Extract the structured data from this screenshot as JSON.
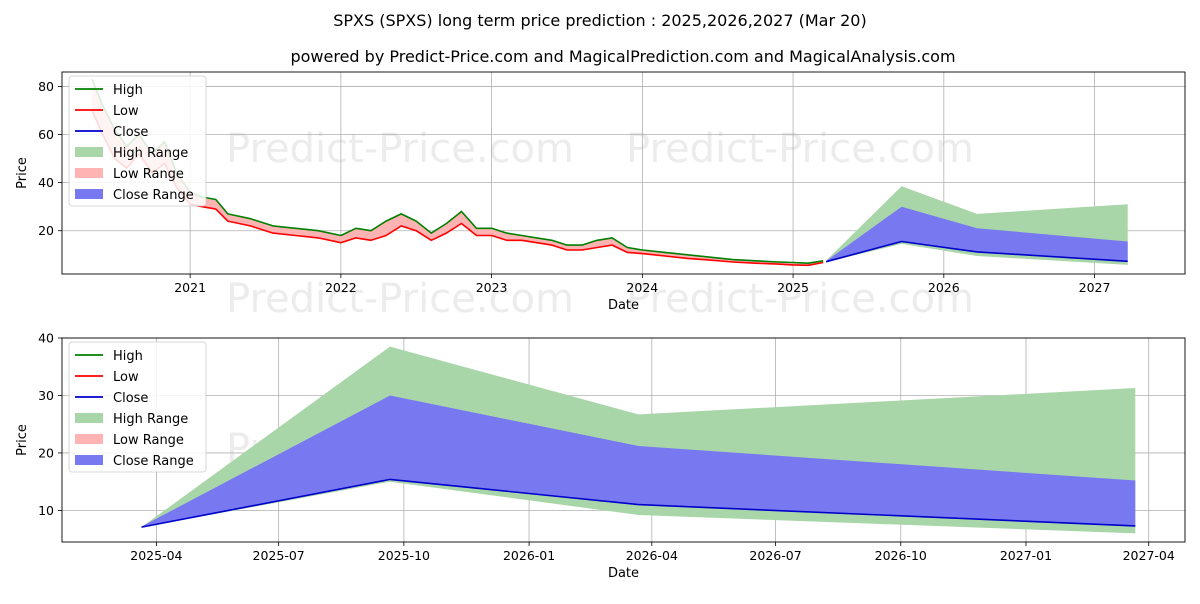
{
  "title": "SPXS (SPXS) long term price prediction : 2025,2026,2027 (Mar 20)",
  "subtitle": "powered by Predict-Price.com and MagicalPrediction.com and MagicalAnalysis.com",
  "watermark": "Predict-Price.com",
  "colors": {
    "high": "#008000",
    "low": "#ff0000",
    "close": "#0000cc",
    "high_range": "#a9d6a9",
    "low_range": "#ffb3b3",
    "close_range": "#7878f0"
  },
  "chart_data": [
    {
      "type": "line",
      "name": "long-term",
      "xlabel": "Date",
      "ylabel": "Price",
      "xlim": [
        2020.15,
        2027.6
      ],
      "ylim": [
        2,
        86
      ],
      "grid": true,
      "legend_position": "upper-left",
      "xticks": [
        {
          "x": 2021.0,
          "label": "2021"
        },
        {
          "x": 2022.0,
          "label": "2022"
        },
        {
          "x": 2023.0,
          "label": "2023"
        },
        {
          "x": 2024.0,
          "label": "2024"
        },
        {
          "x": 2025.0,
          "label": "2025"
        },
        {
          "x": 2026.0,
          "label": "2026"
        },
        {
          "x": 2027.0,
          "label": "2027"
        }
      ],
      "yticks": [
        20,
        40,
        60,
        80
      ],
      "legend": [
        "High",
        "Low",
        "Close",
        "High Range",
        "Low Range",
        "Close Range"
      ],
      "history": {
        "x": [
          2020.35,
          2020.42,
          2020.5,
          2020.58,
          2020.66,
          2020.75,
          2020.83,
          2020.91,
          2021.0,
          2021.08,
          2021.17,
          2021.25,
          2021.4,
          2021.55,
          2021.7,
          2021.85,
          2022.0,
          2022.1,
          2022.2,
          2022.3,
          2022.4,
          2022.5,
          2022.6,
          2022.7,
          2022.8,
          2022.9,
          2023.0,
          2023.1,
          2023.2,
          2023.3,
          2023.4,
          2023.5,
          2023.6,
          2023.7,
          2023.8,
          2023.9,
          2024.0,
          2024.15,
          2024.3,
          2024.45,
          2024.6,
          2024.75,
          2024.9,
          2025.0,
          2025.1,
          2025.2
        ],
        "high": [
          83,
          72,
          62,
          55,
          60,
          52,
          57,
          44,
          36,
          34,
          33,
          27,
          25,
          22,
          21,
          20,
          18,
          21,
          20,
          24,
          27,
          24,
          19,
          23,
          28,
          21,
          21,
          19,
          18,
          17,
          16,
          14,
          14,
          16,
          17,
          13,
          12,
          11,
          10,
          9,
          8,
          7.5,
          7,
          6.8,
          6.5,
          7.5
        ],
        "low": [
          70,
          60,
          50,
          46,
          52,
          44,
          48,
          38,
          31,
          30,
          29,
          24,
          22,
          19,
          18,
          17,
          15,
          17,
          16,
          18,
          22,
          20,
          16,
          19,
          23,
          18,
          18,
          16,
          16,
          15,
          14,
          12,
          12,
          13,
          14,
          11,
          10.5,
          9.5,
          8.5,
          7.8,
          7,
          6.5,
          6.1,
          5.8,
          5.6,
          6.8
        ]
      },
      "forecast": {
        "x": [
          2025.22,
          2025.72,
          2026.22,
          2027.22
        ],
        "high": [
          7.6,
          38.5,
          27,
          31
        ],
        "low": [
          6.9,
          14.5,
          9.5,
          5.8
        ],
        "close": [
          7.1,
          15.5,
          11.2,
          7.3
        ],
        "close_range_high": [
          7.4,
          30,
          21,
          15.5
        ],
        "close_range_low": [
          6.9,
          15.5,
          11.2,
          7.3
        ]
      }
    },
    {
      "type": "line",
      "name": "forecast-zoom",
      "xlabel": "Date",
      "ylabel": "Price",
      "xlim": [
        2025.06,
        2027.32
      ],
      "ylim": [
        4.5,
        40
      ],
      "grid": true,
      "legend_position": "upper-left",
      "xticks": [
        {
          "x": 2025.25,
          "label": "2025-04"
        },
        {
          "x": 2025.496,
          "label": "2025-07"
        },
        {
          "x": 2025.748,
          "label": "2025-10"
        },
        {
          "x": 2026.0,
          "label": "2026-01"
        },
        {
          "x": 2026.247,
          "label": "2026-04"
        },
        {
          "x": 2026.496,
          "label": "2026-07"
        },
        {
          "x": 2026.748,
          "label": "2026-10"
        },
        {
          "x": 2027.0,
          "label": "2027-01"
        },
        {
          "x": 2027.247,
          "label": "2027-04"
        }
      ],
      "yticks": [
        10,
        20,
        30,
        40
      ],
      "legend": [
        "High",
        "Low",
        "Close",
        "High Range",
        "Low Range",
        "Close Range"
      ],
      "forecast": {
        "x": [
          2025.22,
          2025.72,
          2026.22,
          2027.22
        ],
        "high": [
          7.1,
          38.5,
          26.7,
          31.3
        ],
        "low": [
          7.0,
          15.0,
          9.2,
          6.0
        ],
        "close": [
          7.1,
          15.4,
          11.0,
          7.3
        ],
        "close_range_high": [
          7.2,
          30.0,
          21.2,
          15.2
        ],
        "close_range_low": [
          7.0,
          15.4,
          11.0,
          7.3
        ]
      }
    }
  ]
}
